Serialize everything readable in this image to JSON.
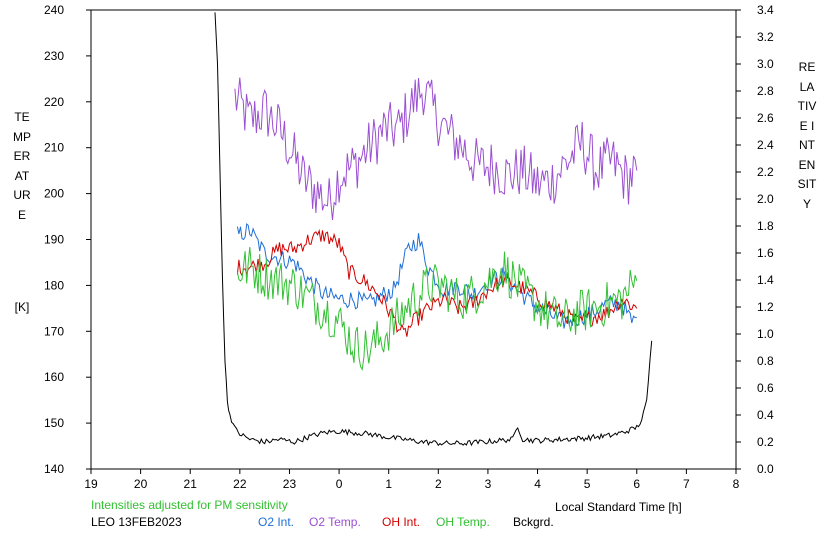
{
  "chart_data": {
    "type": "line",
    "left_axis_label": "TEMPERATURE",
    "left_axis_unit": "[K]",
    "right_axis_label": "RELATIVE INTENSITY",
    "xlabel": "Local Standard Time [h]",
    "note": "Intensities adjusted for PM sensitivity",
    "station": "LEO 13FEB2023",
    "x_ticks": [
      "19",
      "20",
      "21",
      "22",
      "23",
      "0",
      "1",
      "2",
      "3",
      "4",
      "5",
      "6",
      "7",
      "8"
    ],
    "x_range_hours_after_19": [
      0,
      13
    ],
    "y_left_range": [
      140,
      240
    ],
    "y_left_ticks": [
      140,
      150,
      160,
      170,
      180,
      190,
      200,
      210,
      220,
      230,
      240
    ],
    "y_right_range": [
      0.0,
      3.4
    ],
    "y_right_ticks": [
      "0.0",
      "0.2",
      "0.4",
      "0.6",
      "0.8",
      "1.0",
      "1.2",
      "1.4",
      "1.6",
      "1.8",
      "2.0",
      "2.2",
      "2.4",
      "2.6",
      "2.8",
      "3.0",
      "3.2",
      "3.4"
    ],
    "grid": false,
    "legend": [
      {
        "key": "o2int",
        "label": "O2 Int.",
        "color": "#1f6fd6"
      },
      {
        "key": "o2temp",
        "label": "O2 Temp.",
        "color": "#9b4fd1"
      },
      {
        "key": "ohint",
        "label": "OH Int.",
        "color": "#d10000"
      },
      {
        "key": "ohtemp",
        "label": "OH Temp.",
        "color": "#33c033"
      },
      {
        "key": "bckgrd",
        "label": "Bckgrd.",
        "color": "#000000"
      }
    ],
    "series": [
      {
        "key": "o2temp",
        "axis": "left",
        "color": "#9b4fd1",
        "noise": 6,
        "points": [
          [
            21.9,
            221
          ],
          [
            22.2,
            216
          ],
          [
            22.5,
            218
          ],
          [
            22.8,
            214
          ],
          [
            23.0,
            210
          ],
          [
            23.3,
            203
          ],
          [
            23.6,
            200
          ],
          [
            23.8,
            198
          ],
          [
            24.0,
            204
          ],
          [
            24.3,
            206
          ],
          [
            24.6,
            210
          ],
          [
            24.9,
            214
          ],
          [
            25.2,
            214
          ],
          [
            25.5,
            220
          ],
          [
            25.7,
            223
          ],
          [
            25.9,
            218
          ],
          [
            26.2,
            213
          ],
          [
            26.5,
            210
          ],
          [
            26.8,
            206
          ],
          [
            27.1,
            206
          ],
          [
            27.4,
            204
          ],
          [
            27.7,
            205
          ],
          [
            28.0,
            202
          ],
          [
            28.3,
            203
          ],
          [
            28.6,
            207
          ],
          [
            28.9,
            211
          ],
          [
            29.2,
            205
          ],
          [
            29.5,
            207
          ],
          [
            29.8,
            203
          ],
          [
            30.0,
            205
          ]
        ]
      },
      {
        "key": "o2int",
        "axis": "left",
        "color": "#1f6fd6",
        "noise": 2.0,
        "points": [
          [
            21.95,
            191
          ],
          [
            22.2,
            192
          ],
          [
            22.5,
            187
          ],
          [
            22.8,
            186
          ],
          [
            23.1,
            185
          ],
          [
            23.4,
            181
          ],
          [
            23.7,
            178
          ],
          [
            24.0,
            177
          ],
          [
            24.3,
            177
          ],
          [
            24.6,
            176
          ],
          [
            24.9,
            178
          ],
          [
            25.1,
            179
          ],
          [
            25.4,
            188
          ],
          [
            25.6,
            190
          ],
          [
            25.8,
            184
          ],
          [
            26.1,
            179
          ],
          [
            26.4,
            180
          ],
          [
            26.7,
            178
          ],
          [
            27.0,
            181
          ],
          [
            27.3,
            182
          ],
          [
            27.6,
            179
          ],
          [
            27.9,
            176
          ],
          [
            28.2,
            174
          ],
          [
            28.5,
            172
          ],
          [
            28.8,
            173
          ],
          [
            29.1,
            174
          ],
          [
            29.4,
            176
          ],
          [
            29.7,
            176
          ],
          [
            29.9,
            172
          ],
          [
            30.0,
            173
          ]
        ]
      },
      {
        "key": "ohint",
        "axis": "left",
        "color": "#d10000",
        "noise": 1.8,
        "points": [
          [
            21.95,
            184
          ],
          [
            22.2,
            184
          ],
          [
            22.5,
            185
          ],
          [
            22.8,
            188
          ],
          [
            23.1,
            188
          ],
          [
            23.4,
            190
          ],
          [
            23.7,
            191
          ],
          [
            24.0,
            189
          ],
          [
            24.2,
            183
          ],
          [
            24.5,
            181
          ],
          [
            24.8,
            178
          ],
          [
            25.1,
            173
          ],
          [
            25.3,
            169
          ],
          [
            25.5,
            172
          ],
          [
            25.8,
            175
          ],
          [
            26.1,
            177
          ],
          [
            26.4,
            175
          ],
          [
            26.7,
            176
          ],
          [
            27.0,
            179
          ],
          [
            27.3,
            181
          ],
          [
            27.6,
            180
          ],
          [
            27.9,
            178
          ],
          [
            28.2,
            176
          ],
          [
            28.5,
            174
          ],
          [
            28.8,
            172
          ],
          [
            29.1,
            173
          ],
          [
            29.4,
            174
          ],
          [
            29.7,
            177
          ],
          [
            30.0,
            175
          ]
        ]
      },
      {
        "key": "ohtemp",
        "axis": "left",
        "color": "#33c033",
        "noise": 5,
        "points": [
          [
            21.95,
            183
          ],
          [
            22.2,
            184
          ],
          [
            22.5,
            182
          ],
          [
            22.8,
            181
          ],
          [
            23.1,
            180
          ],
          [
            23.4,
            177
          ],
          [
            23.7,
            175
          ],
          [
            24.0,
            172
          ],
          [
            24.3,
            167
          ],
          [
            24.6,
            166
          ],
          [
            24.9,
            169
          ],
          [
            25.2,
            173
          ],
          [
            25.5,
            177
          ],
          [
            25.8,
            180
          ],
          [
            26.1,
            180
          ],
          [
            26.4,
            177
          ],
          [
            26.7,
            178
          ],
          [
            27.0,
            181
          ],
          [
            27.3,
            184
          ],
          [
            27.6,
            180
          ],
          [
            27.9,
            177
          ],
          [
            28.2,
            174
          ],
          [
            28.5,
            172
          ],
          [
            28.8,
            174
          ],
          [
            29.1,
            175
          ],
          [
            29.4,
            176
          ],
          [
            29.7,
            177
          ],
          [
            30.0,
            181
          ]
        ]
      },
      {
        "key": "bckgrd",
        "axis": "right",
        "color": "#000000",
        "noise": 0.02,
        "points": [
          [
            21.5,
            3.4
          ],
          [
            21.55,
            3.0
          ],
          [
            21.6,
            2.2
          ],
          [
            21.65,
            1.4
          ],
          [
            21.7,
            0.8
          ],
          [
            21.75,
            0.5
          ],
          [
            21.8,
            0.4
          ],
          [
            21.9,
            0.3
          ],
          [
            22.0,
            0.26
          ],
          [
            22.2,
            0.22
          ],
          [
            22.5,
            0.2
          ],
          [
            22.8,
            0.22
          ],
          [
            23.1,
            0.2
          ],
          [
            23.4,
            0.24
          ],
          [
            23.7,
            0.27
          ],
          [
            24.0,
            0.28
          ],
          [
            24.3,
            0.27
          ],
          [
            24.6,
            0.26
          ],
          [
            24.9,
            0.24
          ],
          [
            25.3,
            0.22
          ],
          [
            25.7,
            0.2
          ],
          [
            26.1,
            0.19
          ],
          [
            26.5,
            0.19
          ],
          [
            26.9,
            0.2
          ],
          [
            27.2,
            0.21
          ],
          [
            27.5,
            0.22
          ],
          [
            27.6,
            0.32
          ],
          [
            27.7,
            0.22
          ],
          [
            28.0,
            0.21
          ],
          [
            28.5,
            0.22
          ],
          [
            29.0,
            0.23
          ],
          [
            29.5,
            0.25
          ],
          [
            29.8,
            0.28
          ],
          [
            30.0,
            0.31
          ],
          [
            30.1,
            0.36
          ],
          [
            30.2,
            0.5
          ],
          [
            30.3,
            0.95
          ]
        ]
      }
    ]
  }
}
